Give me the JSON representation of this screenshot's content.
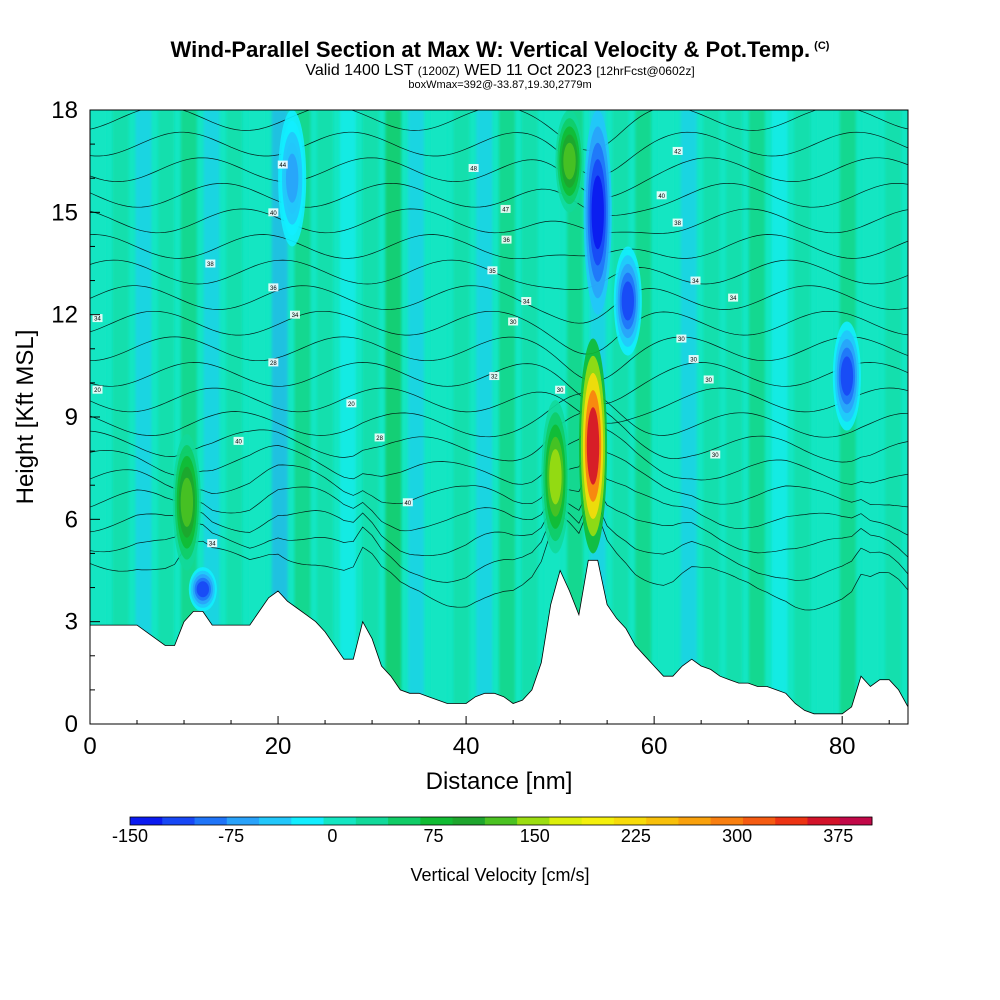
{
  "header": {
    "title": "Wind-Parallel Section at Max W: Vertical Velocity & Pot.Temp.",
    "copyright": "(C)",
    "valid_prefix": "Valid 1400 LST",
    "valid_utc": "(1200Z)",
    "valid_date": "WED 11 Oct 2023",
    "forecast": "[12hrFcst@0602z]",
    "box_info": "boxWmax=392@-33.87,19.30,2779m"
  },
  "chart_data": {
    "type": "heatmap",
    "title": "Wind-Parallel Section at Max W: Vertical Velocity & Pot.Temp.",
    "xlabel": "Distance [nm]",
    "ylabel": "Height [Kft MSL]",
    "xlim": [
      0,
      87
    ],
    "ylim": [
      0,
      18
    ],
    "x_ticks": [
      "0",
      "20",
      "40",
      "60",
      "80"
    ],
    "y_ticks": [
      "0",
      "3",
      "6",
      "9",
      "12",
      "15",
      "18"
    ],
    "colorbar": {
      "label": "Vertical Velocity [cm/s]",
      "tick_labels": [
        "-150",
        "-75",
        "0",
        "75",
        "150",
        "225",
        "300",
        "375"
      ],
      "levels": [
        -150,
        -125,
        -100,
        -75,
        -50,
        -25,
        0,
        25,
        50,
        75,
        100,
        125,
        150,
        175,
        200,
        225,
        250,
        275,
        300,
        325,
        350,
        375,
        400
      ],
      "colors": [
        "#0a1af0",
        "#1747f5",
        "#1f74f8",
        "#29a2fa",
        "#22c7fb",
        "#12eeff",
        "#13e6c2",
        "#11d99a",
        "#10cc66",
        "#11bb33",
        "#1ea52d",
        "#4bc222",
        "#9bdd11",
        "#dcef0a",
        "#f4f00c",
        "#f7db0a",
        "#f8c00a",
        "#f9a10c",
        "#f87f10",
        "#f55b12",
        "#ec3313",
        "#d3132a",
        "#c20848"
      ]
    },
    "terrain_profile": {
      "x": [
        0,
        2,
        5,
        7,
        8,
        9,
        10,
        11,
        12,
        13,
        14,
        15,
        17,
        18,
        19,
        20,
        21,
        22,
        23,
        24,
        25,
        26,
        27,
        28,
        29,
        30,
        31,
        32,
        33,
        34,
        35,
        36,
        37,
        38,
        39,
        40,
        41,
        42,
        43,
        44,
        45,
        46,
        47,
        48,
        49,
        50,
        51,
        52,
        53,
        54,
        55,
        56,
        57,
        58,
        59,
        60,
        61,
        62,
        63,
        64,
        65,
        66,
        67,
        68,
        69,
        70,
        71,
        72,
        73,
        74,
        75,
        76,
        77,
        78,
        79,
        80,
        81,
        82,
        83,
        84,
        85,
        86,
        87
      ],
      "y": [
        2.9,
        2.9,
        2.9,
        2.5,
        2.3,
        2.3,
        3.0,
        3.3,
        3.3,
        2.9,
        2.9,
        2.9,
        2.9,
        3.3,
        3.7,
        3.9,
        3.6,
        3.4,
        3.2,
        3.0,
        2.7,
        2.3,
        1.9,
        1.9,
        3.0,
        2.5,
        1.7,
        1.4,
        1.0,
        0.9,
        0.9,
        0.8,
        0.7,
        0.6,
        0.6,
        0.6,
        0.8,
        0.9,
        0.9,
        0.8,
        0.6,
        0.7,
        1.0,
        1.8,
        3.5,
        4.5,
        3.9,
        3.2,
        4.8,
        4.8,
        3.5,
        3.1,
        2.8,
        2.3,
        2.0,
        1.7,
        1.4,
        1.4,
        1.7,
        1.9,
        1.7,
        1.6,
        1.4,
        1.3,
        1.2,
        1.2,
        1.1,
        1.1,
        1.0,
        0.9,
        0.6,
        0.4,
        0.3,
        0.3,
        0.3,
        0.3,
        0.5,
        1.4,
        1.1,
        1.3,
        1.3,
        1.0,
        0.5
      ]
    },
    "updraft_cores": [
      {
        "x": 53.5,
        "y_bottom": 5.0,
        "y_top": 11.3,
        "peak_w": 392
      },
      {
        "x": 49.5,
        "y_bottom": 5.0,
        "y_top": 9.5,
        "peak_w": 160
      },
      {
        "x": 10.3,
        "y_bottom": 4.5,
        "y_top": 8.5,
        "peak_w": 150
      },
      {
        "x": 51.0,
        "y_bottom": 15.0,
        "y_top": 18.0,
        "peak_w": 130
      }
    ],
    "downdraft_cores": [
      {
        "x": 54.0,
        "y_bottom": 12.0,
        "y_top": 18.0,
        "peak_w": -150
      },
      {
        "x": 57.2,
        "y_bottom": 10.8,
        "y_top": 14.0,
        "peak_w": -110
      },
      {
        "x": 80.5,
        "y_bottom": 8.6,
        "y_top": 11.8,
        "peak_w": -100
      },
      {
        "x": 12.0,
        "y_bottom": 3.3,
        "y_top": 4.6,
        "peak_w": -100
      },
      {
        "x": 21.5,
        "y_bottom": 14.0,
        "y_top": 18.0,
        "peak_w": -60
      }
    ],
    "theta_contours": {
      "units": "K",
      "labels": [
        {
          "x": 20.5,
          "y": 16.4,
          "text": "44"
        },
        {
          "x": 40.8,
          "y": 16.3,
          "text": "48"
        },
        {
          "x": 62.5,
          "y": 16.8,
          "text": "42"
        },
        {
          "x": 19.5,
          "y": 15.0,
          "text": "40"
        },
        {
          "x": 44.2,
          "y": 15.1,
          "text": "47"
        },
        {
          "x": 60.8,
          "y": 15.5,
          "text": "40"
        },
        {
          "x": 12.8,
          "y": 13.5,
          "text": "38"
        },
        {
          "x": 44.3,
          "y": 14.2,
          "text": "36"
        },
        {
          "x": 62.5,
          "y": 14.7,
          "text": "38"
        },
        {
          "x": 42.8,
          "y": 13.3,
          "text": "35"
        },
        {
          "x": 64.4,
          "y": 13.0,
          "text": "34"
        },
        {
          "x": 19.5,
          "y": 12.8,
          "text": "36"
        },
        {
          "x": 46.4,
          "y": 12.4,
          "text": "34"
        },
        {
          "x": 68.4,
          "y": 12.5,
          "text": "34"
        },
        {
          "x": 21.8,
          "y": 12.0,
          "text": "34"
        },
        {
          "x": 0.8,
          "y": 11.9,
          "text": "34"
        },
        {
          "x": 45.0,
          "y": 11.8,
          "text": "30"
        },
        {
          "x": 62.9,
          "y": 11.3,
          "text": "30"
        },
        {
          "x": 19.5,
          "y": 10.6,
          "text": "28"
        },
        {
          "x": 64.2,
          "y": 10.7,
          "text": "30"
        },
        {
          "x": 43.0,
          "y": 10.2,
          "text": "32"
        },
        {
          "x": 65.8,
          "y": 10.1,
          "text": "30"
        },
        {
          "x": 50.0,
          "y": 9.8,
          "text": "30"
        },
        {
          "x": 0.8,
          "y": 9.8,
          "text": "20"
        },
        {
          "x": 27.8,
          "y": 9.4,
          "text": "20"
        },
        {
          "x": 15.8,
          "y": 8.3,
          "text": "40"
        },
        {
          "x": 30.8,
          "y": 8.4,
          "text": "28"
        },
        {
          "x": 66.5,
          "y": 7.9,
          "text": "30"
        },
        {
          "x": 33.8,
          "y": 6.5,
          "text": "40"
        },
        {
          "x": 13.0,
          "y": 5.3,
          "text": "34"
        }
      ]
    }
  }
}
